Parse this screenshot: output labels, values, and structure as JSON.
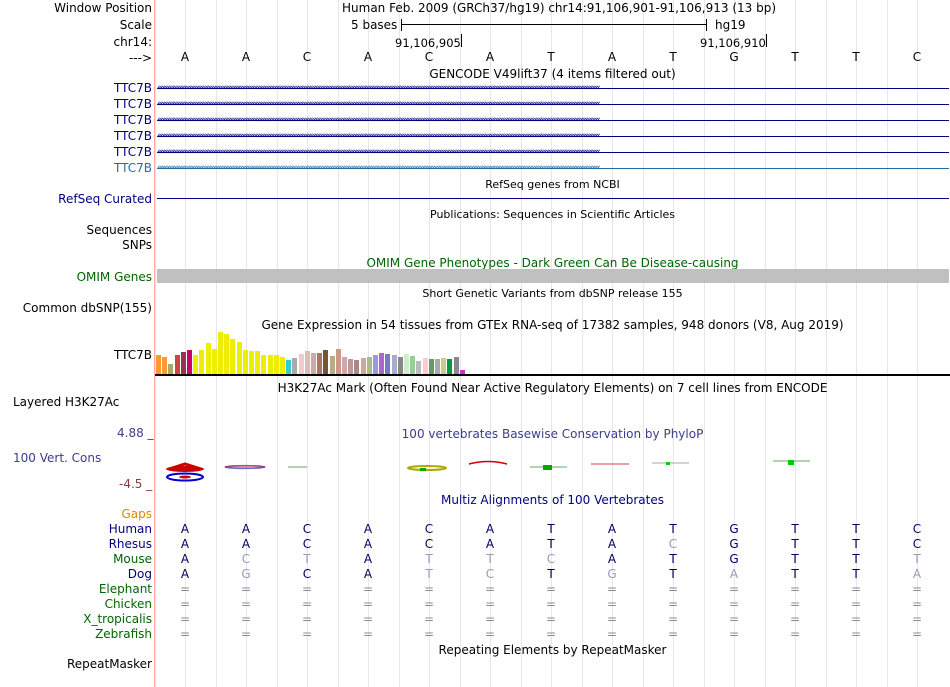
{
  "position": {
    "label": "Window Position",
    "text": "Human Feb. 2009 (GRCh37/hg19)   chr14:91,106,901-91,106,913 (13 bp)"
  },
  "scale": {
    "label": "Scale",
    "bases": "5 bases",
    "assembly": "hg19"
  },
  "chrom": {
    "label": "chr14:",
    "tick1": "91,106,905",
    "tick2": "91,106,910"
  },
  "sequence": {
    "label": "--->",
    "bases": [
      "A",
      "A",
      "C",
      "A",
      "C",
      "A",
      "T",
      "A",
      "T",
      "G",
      "T",
      "T",
      "C"
    ]
  },
  "gencode": {
    "title": "GENCODE V49lift37 (4 items filtered out)",
    "tracks": [
      {
        "label": "TTC7B",
        "color": "#000080"
      },
      {
        "label": "TTC7B",
        "color": "#000080"
      },
      {
        "label": "TTC7B",
        "color": "#000080"
      },
      {
        "label": "TTC7B",
        "color": "#000080"
      },
      {
        "label": "TTC7B",
        "color": "#000080"
      },
      {
        "label": "TTC7B",
        "color": "#1f6fa8"
      }
    ],
    "arrow_glyph": "‹"
  },
  "refseq": {
    "title": "RefSeq genes from NCBI",
    "label": "RefSeq Curated"
  },
  "publications": {
    "title": "Publications: Sequences in Scientific Articles",
    "label1": "Sequences",
    "label2": "SNPs"
  },
  "omim": {
    "title": "OMIM Gene Phenotypes - Dark Green Can Be Disease-causing",
    "label": "OMIM Genes"
  },
  "dbsnp": {
    "title": "Short Genetic Variants from dbSNP release 155",
    "label": "Common dbSNP(155)"
  },
  "gtex": {
    "title": "Gene Expression in 54 tissues from GTEx RNA-seq of 17382 samples, 948 donors (V8, Aug 2019)",
    "label": "TTC7B",
    "bars": [
      {
        "v": 0.45,
        "c": "#ff9933"
      },
      {
        "v": 0.4,
        "c": "#ff9933"
      },
      {
        "v": 0.23,
        "c": "#aaaa66"
      },
      {
        "v": 0.45,
        "c": "#cc4444"
      },
      {
        "v": 0.53,
        "c": "#993355"
      },
      {
        "v": 0.58,
        "c": "#cc0066"
      },
      {
        "v": 0.45,
        "c": "#eeee00"
      },
      {
        "v": 0.58,
        "c": "#eeee00"
      },
      {
        "v": 0.73,
        "c": "#eeee00"
      },
      {
        "v": 0.6,
        "c": "#eeee00"
      },
      {
        "v": 1.0,
        "c": "#eeee00"
      },
      {
        "v": 0.95,
        "c": "#eeee00"
      },
      {
        "v": 0.83,
        "c": "#eeee00"
      },
      {
        "v": 0.75,
        "c": "#eeee00"
      },
      {
        "v": 0.58,
        "c": "#eeee00"
      },
      {
        "v": 0.55,
        "c": "#eeee00"
      },
      {
        "v": 0.55,
        "c": "#eeee00"
      },
      {
        "v": 0.45,
        "c": "#eeee00"
      },
      {
        "v": 0.45,
        "c": "#eeee00"
      },
      {
        "v": 0.45,
        "c": "#eeee00"
      },
      {
        "v": 0.4,
        "c": "#eeee00"
      },
      {
        "v": 0.33,
        "c": "#33cccc"
      },
      {
        "v": 0.38,
        "c": "#aaaaaa"
      },
      {
        "v": 0.48,
        "c": "#eecccc"
      },
      {
        "v": 0.55,
        "c": "#ddbbbb"
      },
      {
        "v": 0.5,
        "c": "#ccaaaa"
      },
      {
        "v": 0.5,
        "c": "#aa7766"
      },
      {
        "v": 0.58,
        "c": "#775533"
      },
      {
        "v": 0.43,
        "c": "#bbaa88"
      },
      {
        "v": 0.6,
        "c": "#cc9988"
      },
      {
        "v": 0.4,
        "c": "#ccaaaa"
      },
      {
        "v": 0.35,
        "c": "#bb9999"
      },
      {
        "v": 0.33,
        "c": "#aa8888"
      },
      {
        "v": 0.38,
        "c": "#ccaa99"
      },
      {
        "v": 0.4,
        "c": "#aabb88"
      },
      {
        "v": 0.45,
        "c": "#9999dd"
      },
      {
        "v": 0.5,
        "c": "#aa66cc"
      },
      {
        "v": 0.48,
        "c": "#7777cc"
      },
      {
        "v": 0.45,
        "c": "#aaaacc"
      },
      {
        "v": 0.4,
        "c": "#888888"
      },
      {
        "v": 0.48,
        "c": "#cceecc"
      },
      {
        "v": 0.43,
        "c": "#99cc99"
      },
      {
        "v": 0.3,
        "c": "#bbbbbb"
      },
      {
        "v": 0.38,
        "c": "#ffcccc"
      },
      {
        "v": 0.35,
        "c": "#669966"
      },
      {
        "v": 0.35,
        "c": "#aaaaaa"
      },
      {
        "v": 0.38,
        "c": "#cccc88"
      },
      {
        "v": 0.35,
        "c": "#009944"
      },
      {
        "v": 0.4,
        "c": "#888888"
      },
      {
        "v": 0.1,
        "c": "#cc33cc"
      }
    ]
  },
  "h3k27ac": {
    "title": "H3K27Ac Mark (Often Found Near Active Regulatory Elements) on 7 cell lines from ENCODE",
    "label": "Layered H3K27Ac"
  },
  "conservation": {
    "title": "100 vertebrates Basewise Conservation by PhyloP",
    "label": "100 Vert. Cons",
    "ymax": "4.88 _",
    "ymin": "-4.5 _",
    "ymax_color": "#3c3c8c",
    "ymin_color": "#8c3c3c"
  },
  "multiz": {
    "title": "Multiz Alignments of 100 Vertebrates",
    "gaps_label": "Gaps",
    "species": [
      {
        "name": "Human",
        "color": "#000080",
        "seq": [
          "A",
          "A",
          "C",
          "A",
          "C",
          "A",
          "T",
          "A",
          "T",
          "G",
          "T",
          "T",
          "C"
        ],
        "faint": []
      },
      {
        "name": "Rhesus",
        "color": "#000080",
        "seq": [
          "A",
          "A",
          "C",
          "A",
          "C",
          "A",
          "T",
          "A",
          "C",
          "G",
          "T",
          "T",
          "C"
        ],
        "faint": [
          8
        ]
      },
      {
        "name": "Mouse",
        "color": "#006600",
        "seq": [
          "A",
          "C",
          "T",
          "A",
          "T",
          "T",
          "C",
          "A",
          "T",
          "G",
          "T",
          "T",
          "T"
        ],
        "faint": [
          1,
          2,
          4,
          5,
          6,
          12
        ]
      },
      {
        "name": "Dog",
        "color": "#000080",
        "seq": [
          "A",
          "G",
          "C",
          "A",
          "T",
          "C",
          "T",
          "G",
          "T",
          "A",
          "T",
          "T",
          "A"
        ],
        "faint": [
          1,
          4,
          5,
          7,
          9,
          12
        ]
      },
      {
        "name": "Elephant",
        "color": "#006600",
        "seq": [
          "=",
          "=",
          "=",
          "=",
          "=",
          "=",
          "=",
          "=",
          "=",
          "=",
          "=",
          "=",
          "="
        ],
        "faint": []
      },
      {
        "name": "Chicken",
        "color": "#006600",
        "seq": [
          "=",
          "=",
          "=",
          "=",
          "=",
          "=",
          "=",
          "=",
          "=",
          "=",
          "=",
          "=",
          "="
        ],
        "faint": []
      },
      {
        "name": "X_tropicalis",
        "color": "#006600",
        "seq": [
          "=",
          "=",
          "=",
          "=",
          "=",
          "=",
          "=",
          "=",
          "=",
          "=",
          "=",
          "=",
          "="
        ],
        "faint": []
      },
      {
        "name": "Zebrafish",
        "color": "#006600",
        "seq": [
          "=",
          "=",
          "=",
          "=",
          "=",
          "=",
          "=",
          "=",
          "=",
          "=",
          "=",
          "=",
          "="
        ],
        "faint": []
      }
    ]
  },
  "repeatmasker": {
    "title": "Repeating Elements by RepeatMasker",
    "label": "RepeatMasker"
  }
}
